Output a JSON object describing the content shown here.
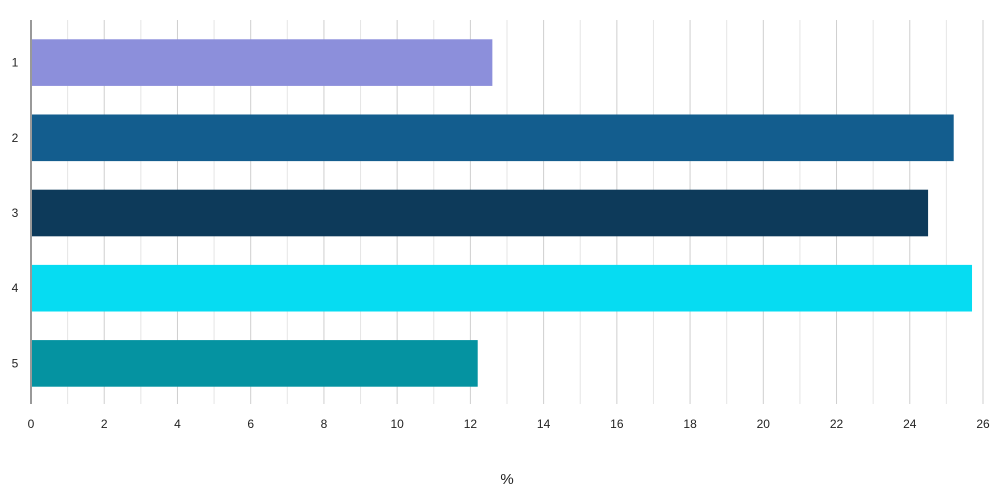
{
  "chart_data": {
    "type": "bar",
    "orientation": "horizontal",
    "categories": [
      "1",
      "2",
      "3",
      "4",
      "5"
    ],
    "values": [
      12.6,
      25.2,
      24.5,
      25.7,
      12.2
    ],
    "colors": [
      "#8c8fdb",
      "#135d8e",
      "#0d3a5a",
      "#06dcf2",
      "#0593a1"
    ],
    "xlabel": "%",
    "ylabel": "",
    "xlim": [
      0,
      26
    ],
    "xticks": [
      "0",
      "2",
      "4",
      "6",
      "8",
      "10",
      "12",
      "14",
      "16",
      "18",
      "20",
      "22",
      "24",
      "26"
    ],
    "grid": true,
    "legend": "none"
  }
}
